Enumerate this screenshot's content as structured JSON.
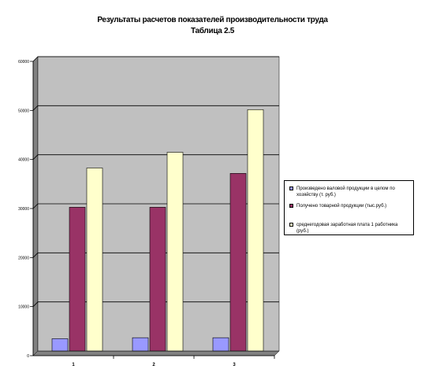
{
  "title_line1": "Результаты расчетов показателей производительности труда",
  "title_line2": "Таблица 2.5",
  "chart_data": {
    "type": "bar",
    "categories": [
      "1",
      "2",
      "3"
    ],
    "ylim": [
      0,
      60000
    ],
    "yticks": [
      "0",
      "10000",
      "20000",
      "30000",
      "40000",
      "50000",
      "60000"
    ],
    "grid": true,
    "legend_position": "right",
    "series": [
      {
        "name": "Произведено валовой продукции в целом по хозяйству (т. руб.)",
        "color": "#9999ff",
        "values": [
          2500,
          2700,
          2700
        ]
      },
      {
        "name": "Получено товарной продукции (тыс.руб.)",
        "color": "#993366",
        "values": [
          29300,
          29300,
          36200
        ]
      },
      {
        "name": "среднегодовая заработная плата 1 работника (руб.)",
        "color": "#ffffcc",
        "values": [
          37300,
          40500,
          49200
        ]
      }
    ]
  },
  "colors": {
    "plot_background": "#c0c0c0",
    "gridline": "#000000"
  }
}
